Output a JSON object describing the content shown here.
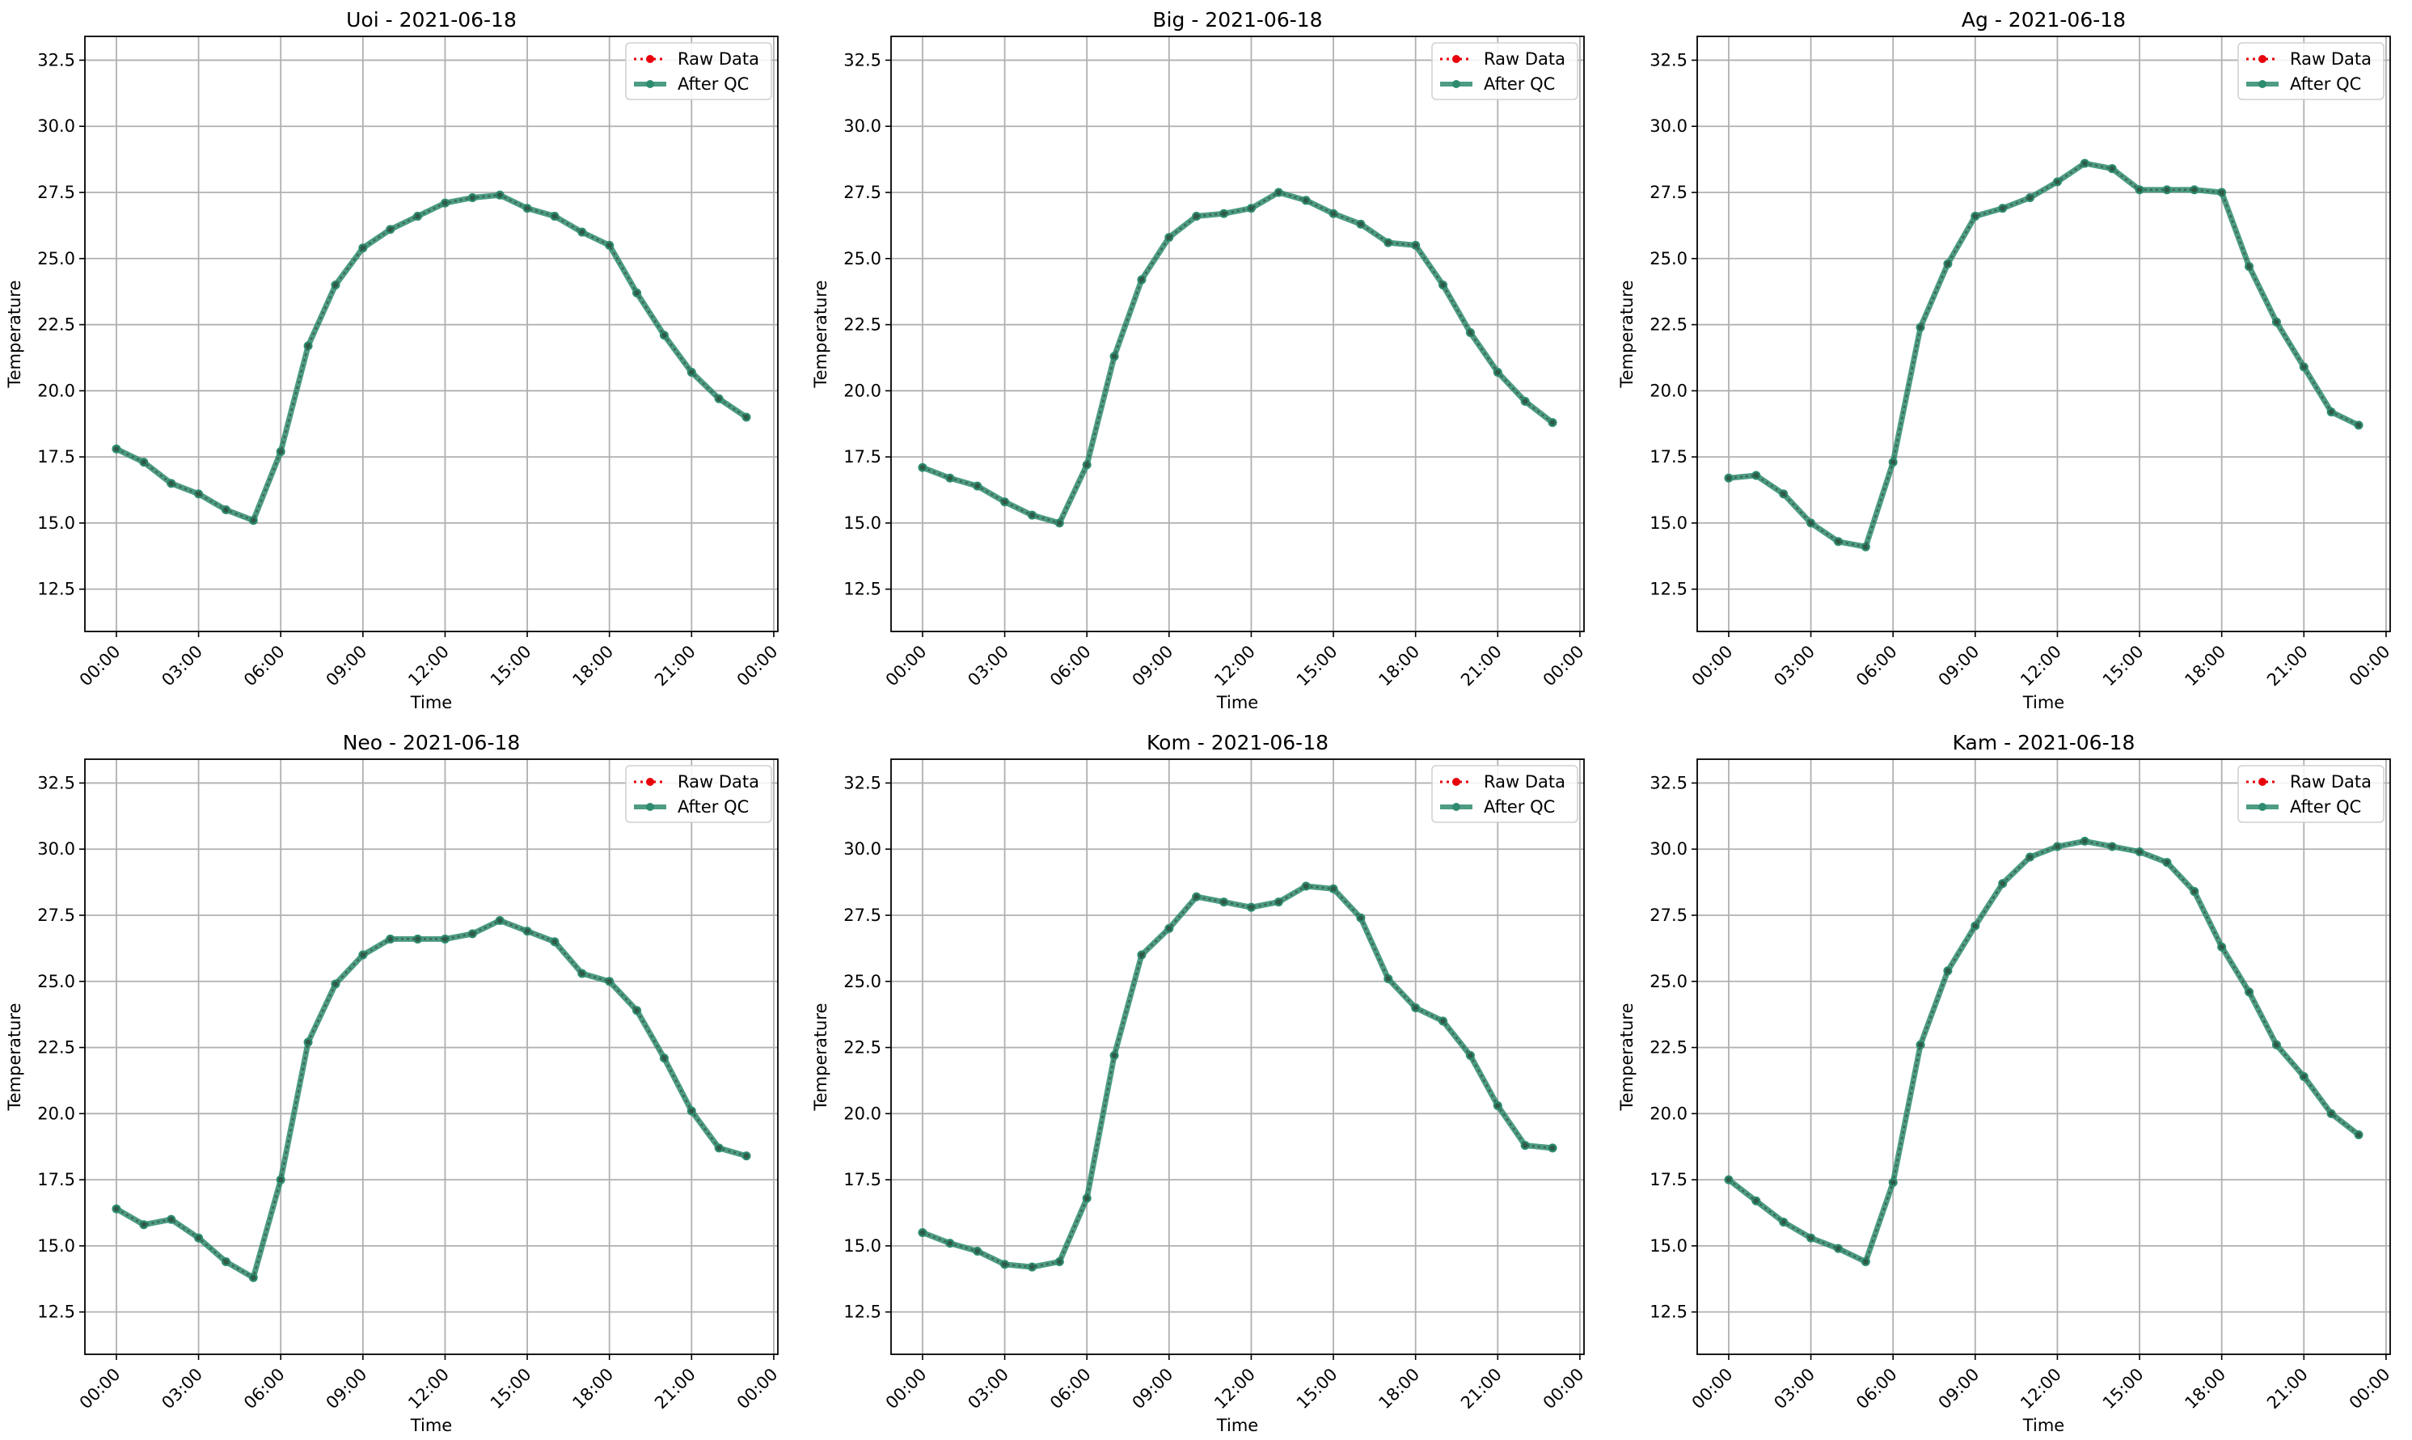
{
  "figure": {
    "style": {
      "raw_color": "#e8000b",
      "qc_color": "#2e8b6f",
      "grid_color": "#b0b0b0"
    },
    "legend_labels": {
      "raw": "Raw Data",
      "qc": "After QC"
    }
  },
  "chart_data": [
    {
      "type": "line",
      "title": "Uoi - 2021-06-18",
      "xlabel": "Time",
      "ylabel": "Temperature",
      "xticks": [
        "00:00",
        "03:00",
        "06:00",
        "09:00",
        "12:00",
        "15:00",
        "18:00",
        "21:00",
        "00:00"
      ],
      "xlim": [
        "2021-06-17T22:51",
        "2021-06-19T00:09"
      ],
      "ylim": [
        10.9,
        33.4
      ],
      "yticks": [
        12.5,
        15.0,
        17.5,
        20.0,
        22.5,
        25.0,
        27.5,
        30.0,
        32.5
      ],
      "grid": true,
      "legend": "top-right",
      "x": [
        "2021-06-18T00:00",
        "2021-06-18T01:00",
        "2021-06-18T02:00",
        "2021-06-18T03:00",
        "2021-06-18T04:00",
        "2021-06-18T05:00",
        "2021-06-18T06:00",
        "2021-06-18T07:00",
        "2021-06-18T08:00",
        "2021-06-18T09:00",
        "2021-06-18T10:00",
        "2021-06-18T11:00",
        "2021-06-18T12:00",
        "2021-06-18T13:00",
        "2021-06-18T14:00",
        "2021-06-18T15:00",
        "2021-06-18T16:00",
        "2021-06-18T17:00",
        "2021-06-18T18:00",
        "2021-06-18T19:00",
        "2021-06-18T20:00",
        "2021-06-18T21:00",
        "2021-06-18T22:00",
        "2021-06-18T23:00"
      ],
      "series": [
        {
          "name": "Raw Data",
          "values": [
            17.8,
            17.3,
            16.5,
            16.1,
            15.5,
            15.1,
            17.7,
            21.7,
            24.0,
            25.4,
            26.1,
            26.6,
            27.1,
            27.3,
            27.4,
            26.9,
            26.6,
            26.0,
            25.5,
            23.7,
            22.1,
            20.7,
            19.7,
            19.0
          ]
        },
        {
          "name": "After QC",
          "values": [
            17.8,
            17.3,
            16.5,
            16.1,
            15.5,
            15.1,
            17.7,
            21.7,
            24.0,
            25.4,
            26.1,
            26.6,
            27.1,
            27.3,
            27.4,
            26.9,
            26.6,
            26.0,
            25.5,
            23.7,
            22.1,
            20.7,
            19.7,
            19.0
          ]
        }
      ]
    },
    {
      "type": "line",
      "title": "Big - 2021-06-18",
      "xlabel": "Time",
      "ylabel": "Temperature",
      "xticks": [
        "00:00",
        "03:00",
        "06:00",
        "09:00",
        "12:00",
        "15:00",
        "18:00",
        "21:00",
        "00:00"
      ],
      "xlim": [
        "2021-06-17T22:51",
        "2021-06-19T00:09"
      ],
      "ylim": [
        10.9,
        33.4
      ],
      "yticks": [
        12.5,
        15.0,
        17.5,
        20.0,
        22.5,
        25.0,
        27.5,
        30.0,
        32.5
      ],
      "grid": true,
      "legend": "top-right",
      "x": [
        "2021-06-18T00:00",
        "2021-06-18T01:00",
        "2021-06-18T02:00",
        "2021-06-18T03:00",
        "2021-06-18T04:00",
        "2021-06-18T05:00",
        "2021-06-18T06:00",
        "2021-06-18T07:00",
        "2021-06-18T08:00",
        "2021-06-18T09:00",
        "2021-06-18T10:00",
        "2021-06-18T11:00",
        "2021-06-18T12:00",
        "2021-06-18T13:00",
        "2021-06-18T14:00",
        "2021-06-18T15:00",
        "2021-06-18T16:00",
        "2021-06-18T17:00",
        "2021-06-18T18:00",
        "2021-06-18T19:00",
        "2021-06-18T20:00",
        "2021-06-18T21:00",
        "2021-06-18T22:00",
        "2021-06-18T23:00"
      ],
      "series": [
        {
          "name": "Raw Data",
          "values": [
            17.1,
            16.7,
            16.4,
            15.8,
            15.3,
            15.0,
            17.2,
            21.3,
            24.2,
            25.8,
            26.6,
            26.7,
            26.9,
            27.5,
            27.2,
            26.7,
            26.3,
            25.6,
            25.5,
            24.0,
            22.2,
            20.7,
            19.6,
            18.8
          ]
        },
        {
          "name": "After QC",
          "values": [
            17.1,
            16.7,
            16.4,
            15.8,
            15.3,
            15.0,
            17.2,
            21.3,
            24.2,
            25.8,
            26.6,
            26.7,
            26.9,
            27.5,
            27.2,
            26.7,
            26.3,
            25.6,
            25.5,
            24.0,
            22.2,
            20.7,
            19.6,
            18.8
          ]
        }
      ]
    },
    {
      "type": "line",
      "title": "Ag - 2021-06-18",
      "xlabel": "Time",
      "ylabel": "Temperature",
      "xticks": [
        "00:00",
        "03:00",
        "06:00",
        "09:00",
        "12:00",
        "15:00",
        "18:00",
        "21:00",
        "00:00"
      ],
      "xlim": [
        "2021-06-17T22:51",
        "2021-06-19T00:09"
      ],
      "ylim": [
        10.9,
        33.4
      ],
      "yticks": [
        12.5,
        15.0,
        17.5,
        20.0,
        22.5,
        25.0,
        27.5,
        30.0,
        32.5
      ],
      "grid": true,
      "legend": "top-right",
      "x": [
        "2021-06-18T00:00",
        "2021-06-18T01:00",
        "2021-06-18T02:00",
        "2021-06-18T03:00",
        "2021-06-18T04:00",
        "2021-06-18T05:00",
        "2021-06-18T06:00",
        "2021-06-18T07:00",
        "2021-06-18T08:00",
        "2021-06-18T09:00",
        "2021-06-18T10:00",
        "2021-06-18T11:00",
        "2021-06-18T12:00",
        "2021-06-18T13:00",
        "2021-06-18T14:00",
        "2021-06-18T15:00",
        "2021-06-18T16:00",
        "2021-06-18T17:00",
        "2021-06-18T18:00",
        "2021-06-18T19:00",
        "2021-06-18T20:00",
        "2021-06-18T21:00",
        "2021-06-18T22:00",
        "2021-06-18T23:00"
      ],
      "series": [
        {
          "name": "Raw Data",
          "values": [
            16.7,
            16.8,
            16.1,
            15.0,
            14.3,
            14.1,
            17.3,
            22.4,
            24.8,
            26.6,
            26.9,
            27.3,
            27.9,
            28.6,
            28.4,
            27.6,
            27.6,
            27.6,
            27.5,
            24.7,
            22.6,
            20.9,
            19.2,
            18.7
          ]
        },
        {
          "name": "After QC",
          "values": [
            16.7,
            16.8,
            16.1,
            15.0,
            14.3,
            14.1,
            17.3,
            22.4,
            24.8,
            26.6,
            26.9,
            27.3,
            27.9,
            28.6,
            28.4,
            27.6,
            27.6,
            27.6,
            27.5,
            24.7,
            22.6,
            20.9,
            19.2,
            18.7
          ]
        }
      ]
    },
    {
      "type": "line",
      "title": "Neo - 2021-06-18",
      "xlabel": "Time",
      "ylabel": "Temperature",
      "xticks": [
        "00:00",
        "03:00",
        "06:00",
        "09:00",
        "12:00",
        "15:00",
        "18:00",
        "21:00",
        "00:00"
      ],
      "xlim": [
        "2021-06-17T22:51",
        "2021-06-19T00:09"
      ],
      "ylim": [
        10.9,
        33.4
      ],
      "yticks": [
        12.5,
        15.0,
        17.5,
        20.0,
        22.5,
        25.0,
        27.5,
        30.0,
        32.5
      ],
      "grid": true,
      "legend": "top-right",
      "x": [
        "2021-06-18T00:00",
        "2021-06-18T01:00",
        "2021-06-18T02:00",
        "2021-06-18T03:00",
        "2021-06-18T04:00",
        "2021-06-18T05:00",
        "2021-06-18T06:00",
        "2021-06-18T07:00",
        "2021-06-18T08:00",
        "2021-06-18T09:00",
        "2021-06-18T10:00",
        "2021-06-18T11:00",
        "2021-06-18T12:00",
        "2021-06-18T13:00",
        "2021-06-18T14:00",
        "2021-06-18T15:00",
        "2021-06-18T16:00",
        "2021-06-18T17:00",
        "2021-06-18T18:00",
        "2021-06-18T19:00",
        "2021-06-18T20:00",
        "2021-06-18T21:00",
        "2021-06-18T22:00",
        "2021-06-18T23:00"
      ],
      "series": [
        {
          "name": "Raw Data",
          "values": [
            16.4,
            15.8,
            16.0,
            15.3,
            14.4,
            13.8,
            17.5,
            22.7,
            24.9,
            26.0,
            26.6,
            26.6,
            26.6,
            26.8,
            27.3,
            26.9,
            26.5,
            25.3,
            25.0,
            23.9,
            22.1,
            20.1,
            18.7,
            18.4
          ]
        },
        {
          "name": "After QC",
          "values": [
            16.4,
            15.8,
            16.0,
            15.3,
            14.4,
            13.8,
            17.5,
            22.7,
            24.9,
            26.0,
            26.6,
            26.6,
            26.6,
            26.8,
            27.3,
            26.9,
            26.5,
            25.3,
            25.0,
            23.9,
            22.1,
            20.1,
            18.7,
            18.4
          ]
        }
      ]
    },
    {
      "type": "line",
      "title": "Kom - 2021-06-18",
      "xlabel": "Time",
      "ylabel": "Temperature",
      "xticks": [
        "00:00",
        "03:00",
        "06:00",
        "09:00",
        "12:00",
        "15:00",
        "18:00",
        "21:00",
        "00:00"
      ],
      "xlim": [
        "2021-06-17T22:51",
        "2021-06-19T00:09"
      ],
      "ylim": [
        10.9,
        33.4
      ],
      "yticks": [
        12.5,
        15.0,
        17.5,
        20.0,
        22.5,
        25.0,
        27.5,
        30.0,
        32.5
      ],
      "grid": true,
      "legend": "top-right",
      "x": [
        "2021-06-18T00:00",
        "2021-06-18T01:00",
        "2021-06-18T02:00",
        "2021-06-18T03:00",
        "2021-06-18T04:00",
        "2021-06-18T05:00",
        "2021-06-18T06:00",
        "2021-06-18T07:00",
        "2021-06-18T08:00",
        "2021-06-18T09:00",
        "2021-06-18T10:00",
        "2021-06-18T11:00",
        "2021-06-18T12:00",
        "2021-06-18T13:00",
        "2021-06-18T14:00",
        "2021-06-18T15:00",
        "2021-06-18T16:00",
        "2021-06-18T17:00",
        "2021-06-18T18:00",
        "2021-06-18T19:00",
        "2021-06-18T20:00",
        "2021-06-18T21:00",
        "2021-06-18T22:00",
        "2021-06-18T23:00"
      ],
      "series": [
        {
          "name": "Raw Data",
          "values": [
            15.5,
            15.1,
            14.8,
            14.3,
            14.2,
            14.4,
            16.8,
            22.2,
            26.0,
            27.0,
            28.2,
            28.0,
            27.8,
            28.0,
            28.6,
            28.5,
            27.4,
            25.1,
            24.0,
            23.5,
            22.2,
            20.3,
            18.8,
            18.7
          ]
        },
        {
          "name": "After QC",
          "values": [
            15.5,
            15.1,
            14.8,
            14.3,
            14.2,
            14.4,
            16.8,
            22.2,
            26.0,
            27.0,
            28.2,
            28.0,
            27.8,
            28.0,
            28.6,
            28.5,
            27.4,
            25.1,
            24.0,
            23.5,
            22.2,
            20.3,
            18.8,
            18.7
          ]
        }
      ]
    },
    {
      "type": "line",
      "title": "Kam - 2021-06-18",
      "xlabel": "Time",
      "ylabel": "Temperature",
      "xticks": [
        "00:00",
        "03:00",
        "06:00",
        "09:00",
        "12:00",
        "15:00",
        "18:00",
        "21:00",
        "00:00"
      ],
      "xlim": [
        "2021-06-17T22:51",
        "2021-06-19T00:09"
      ],
      "ylim": [
        10.9,
        33.4
      ],
      "yticks": [
        12.5,
        15.0,
        17.5,
        20.0,
        22.5,
        25.0,
        27.5,
        30.0,
        32.5
      ],
      "grid": true,
      "legend": "top-right",
      "x": [
        "2021-06-18T00:00",
        "2021-06-18T01:00",
        "2021-06-18T02:00",
        "2021-06-18T03:00",
        "2021-06-18T04:00",
        "2021-06-18T05:00",
        "2021-06-18T06:00",
        "2021-06-18T07:00",
        "2021-06-18T08:00",
        "2021-06-18T09:00",
        "2021-06-18T10:00",
        "2021-06-18T11:00",
        "2021-06-18T12:00",
        "2021-06-18T13:00",
        "2021-06-18T14:00",
        "2021-06-18T15:00",
        "2021-06-18T16:00",
        "2021-06-18T17:00",
        "2021-06-18T18:00",
        "2021-06-18T19:00",
        "2021-06-18T20:00",
        "2021-06-18T21:00",
        "2021-06-18T22:00",
        "2021-06-18T23:00"
      ],
      "series": [
        {
          "name": "Raw Data",
          "values": [
            17.5,
            16.7,
            15.9,
            15.3,
            14.9,
            14.4,
            17.4,
            22.6,
            25.4,
            27.1,
            28.7,
            29.7,
            30.1,
            30.3,
            30.1,
            29.9,
            29.5,
            28.4,
            26.3,
            24.6,
            22.6,
            21.4,
            20.0,
            19.2
          ]
        },
        {
          "name": "After QC",
          "values": [
            17.5,
            16.7,
            15.9,
            15.3,
            14.9,
            14.4,
            17.4,
            22.6,
            25.4,
            27.1,
            28.7,
            29.7,
            30.1,
            30.3,
            30.1,
            29.9,
            29.5,
            28.4,
            26.3,
            24.6,
            22.6,
            21.4,
            20.0,
            19.2
          ]
        }
      ]
    }
  ]
}
